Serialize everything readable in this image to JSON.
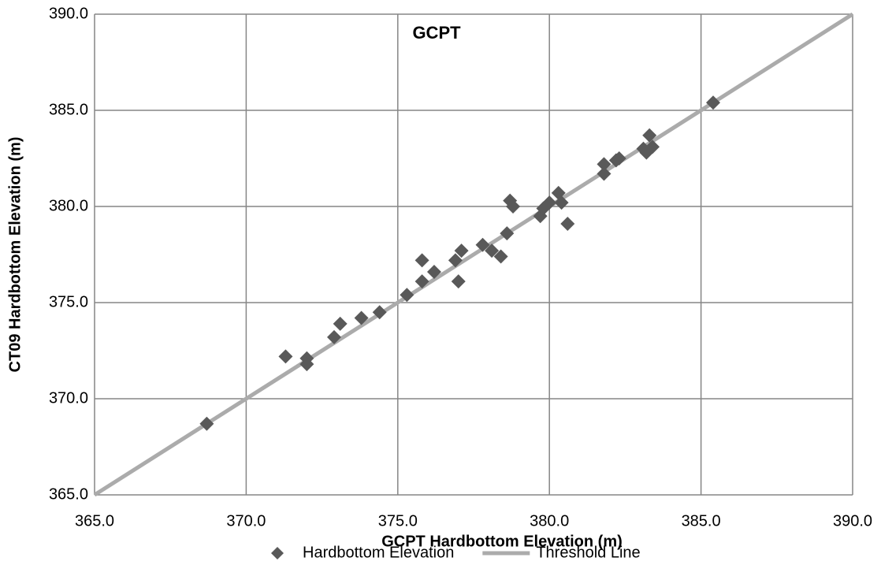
{
  "chart_data": {
    "type": "scatter",
    "title": "GCPT",
    "x_label": "GCPT Hardbottom Elevation (m)",
    "y_label": "CT09 Hardbottom Elevation (m)",
    "xlim": [
      365,
      390
    ],
    "ylim": [
      365,
      390
    ],
    "xticks": [
      {
        "value": 365,
        "label": "365.0"
      },
      {
        "value": 370,
        "label": "370.0"
      },
      {
        "value": 375,
        "label": "375.0"
      },
      {
        "value": 380,
        "label": "380.0"
      },
      {
        "value": 385,
        "label": "385.0"
      },
      {
        "value": 390,
        "label": "390.0"
      }
    ],
    "yticks": [
      {
        "value": 365,
        "label": "365.0"
      },
      {
        "value": 370,
        "label": "370.0"
      },
      {
        "value": 375,
        "label": "375.0"
      },
      {
        "value": 380,
        "label": "380.0"
      },
      {
        "value": 385,
        "label": "385.0"
      },
      {
        "value": 390,
        "label": "390.0"
      }
    ],
    "grid": true,
    "legend": "bottom",
    "series": [
      {
        "name": "Hardbottom Elevation",
        "color": "#595959",
        "marker": "diamond",
        "x": [
          368.7,
          371.3,
          372.0,
          372.0,
          372.9,
          373.1,
          373.8,
          374.4,
          375.3,
          375.8,
          375.8,
          376.2,
          376.9,
          377.1,
          377.0,
          377.8,
          378.1,
          378.4,
          378.6,
          378.7,
          378.8,
          379.7,
          379.8,
          380.0,
          380.3,
          380.4,
          380.6,
          381.8,
          381.8,
          382.2,
          382.3,
          383.1,
          383.2,
          383.3,
          383.4,
          385.4
        ],
        "values": [
          368.7,
          372.2,
          372.1,
          371.8,
          373.2,
          373.9,
          374.2,
          374.5,
          375.4,
          377.2,
          376.1,
          376.6,
          377.2,
          377.7,
          376.1,
          378.0,
          377.7,
          377.4,
          378.6,
          380.3,
          380.0,
          379.5,
          379.9,
          380.2,
          380.7,
          380.2,
          379.1,
          381.7,
          382.2,
          382.4,
          382.5,
          383.0,
          382.8,
          383.7,
          383.1,
          385.4
        ]
      },
      {
        "name": "Threshold Line",
        "color": "#ababab",
        "marker": "line",
        "x": [
          365,
          390
        ],
        "values": [
          365,
          390
        ]
      }
    ]
  }
}
